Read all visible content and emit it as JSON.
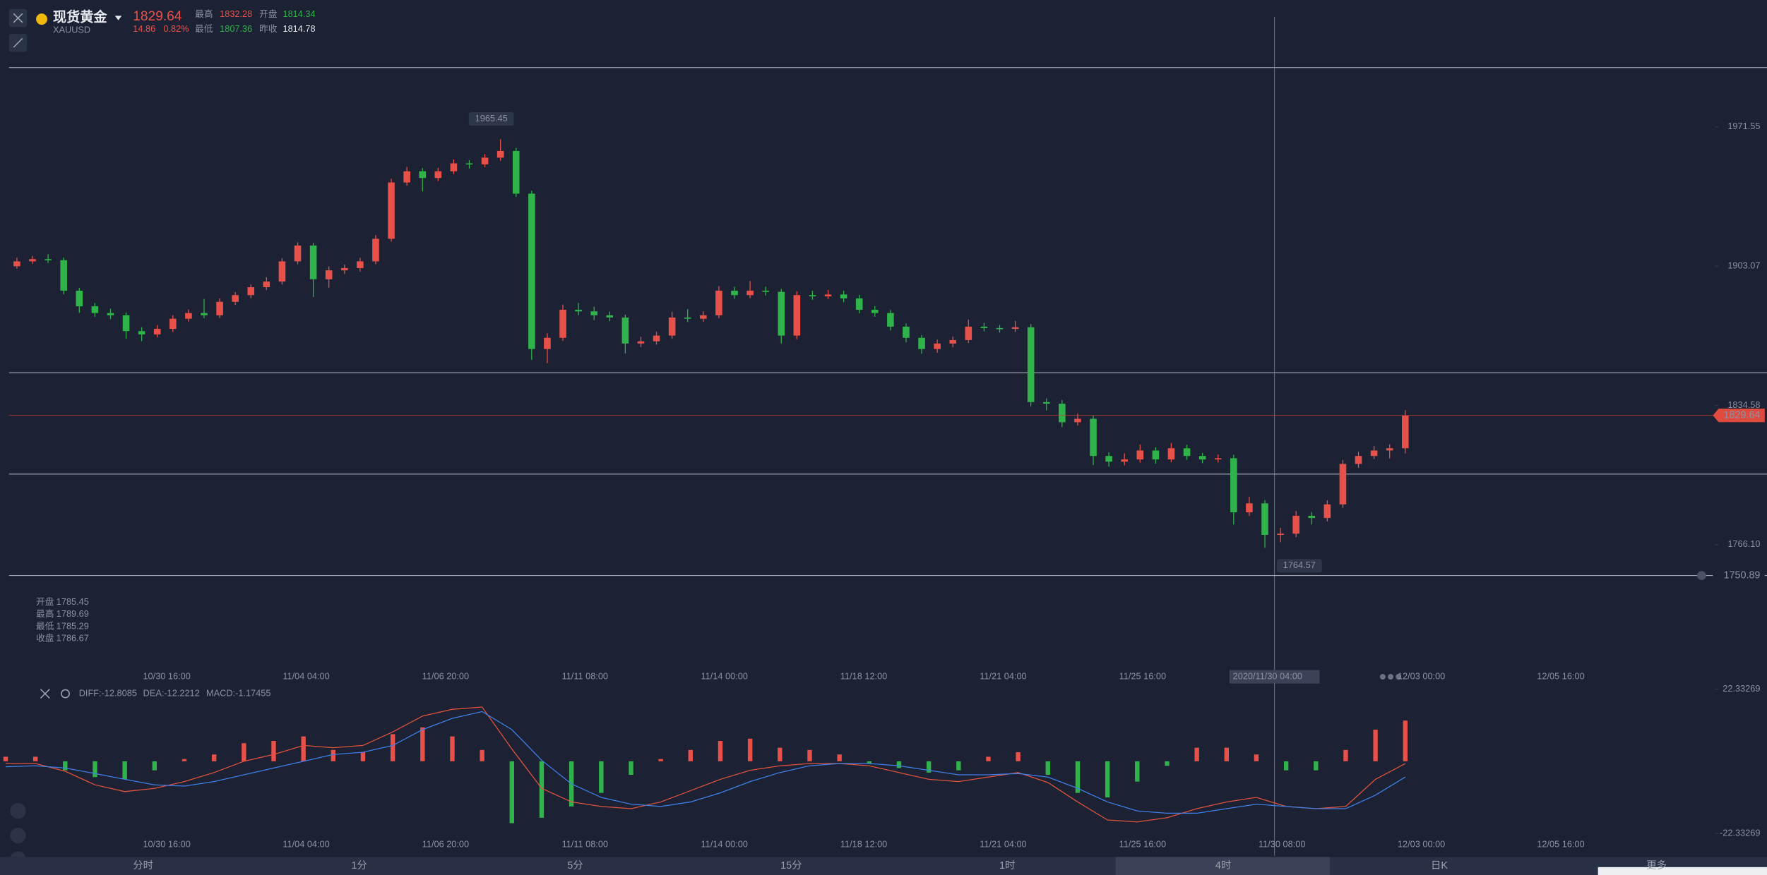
{
  "header": {
    "title": "现货黄金",
    "symbol": "XAUUSD",
    "price": "1829.64",
    "change": "14.86",
    "change_pct": "0.82%",
    "high_label": "最高",
    "high": "1832.28",
    "open_label": "开盘",
    "open": "1814.34",
    "low_label": "最低",
    "low": "1807.36",
    "prev_label": "昨收",
    "prev": "1814.78"
  },
  "ohlc_info": [
    {
      "label": "开盘",
      "value": "1785.45"
    },
    {
      "label": "最高",
      "value": "1789.69"
    },
    {
      "label": "最低",
      "value": "1785.29"
    },
    {
      "label": "收盘",
      "value": "1786.67"
    }
  ],
  "tabs": [
    "分时",
    "1分",
    "5分",
    "15分",
    "1时",
    "4时",
    "日K"
  ],
  "more": "更多",
  "chart_data": [
    {
      "type": "candlestick",
      "up_color": "#e8514a",
      "down_color": "#2fb34a",
      "ylim": [
        1707.2,
        2000.7
      ],
      "yticks": [
        1971.55,
        1903.07,
        1834.58,
        {
          "value": 1766.1,
          "label": "1766.10"
        }
      ],
      "high_marker": 1965.45,
      "low_marker": 1764.57,
      "last_price": 1829.64,
      "alert_price": 1750.89,
      "crosshair_label": "2020/11/30 04:00",
      "xtick_labels": [
        "10/30 16:00",
        "11/04 04:00",
        "11/06 20:00",
        "11/11 08:00",
        "11/14 00:00",
        "11/18 12:00",
        "11/21 04:00",
        "11/25 16:00",
        null,
        "12/03 00:00",
        "12/05 16:00"
      ],
      "candles": [
        [
          1903.0,
          1907.2,
          1901.8,
          1905.4
        ],
        [
          1905.4,
          1908.0,
          1904.1,
          1906.5
        ],
        [
          1906.5,
          1908.9,
          1904.6,
          1906.0
        ],
        [
          1906.0,
          1907.3,
          1889.2,
          1891.0
        ],
        [
          1891.0,
          1892.4,
          1880.1,
          1883.3
        ],
        [
          1883.3,
          1885.0,
          1878.2,
          1880.0
        ],
        [
          1880.0,
          1882.1,
          1877.0,
          1878.9
        ],
        [
          1878.9,
          1880.3,
          1867.4,
          1871.1
        ],
        [
          1871.1,
          1873.0,
          1866.2,
          1869.5
        ],
        [
          1869.5,
          1874.1,
          1868.0,
          1872.2
        ],
        [
          1872.2,
          1878.9,
          1870.6,
          1877.2
        ],
        [
          1877.2,
          1881.7,
          1875.8,
          1880.0
        ],
        [
          1880.0,
          1886.9,
          1877.4,
          1878.9
        ],
        [
          1878.9,
          1887.2,
          1877.5,
          1885.5
        ],
        [
          1885.5,
          1890.3,
          1884.0,
          1888.8
        ],
        [
          1888.8,
          1894.1,
          1887.2,
          1892.7
        ],
        [
          1892.7,
          1897.6,
          1891.3,
          1895.5
        ],
        [
          1895.5,
          1907.0,
          1894.0,
          1905.4
        ],
        [
          1905.4,
          1914.8,
          1903.9,
          1913.2
        ],
        [
          1913.2,
          1914.5,
          1887.9,
          1896.6
        ],
        [
          1896.6,
          1902.9,
          1892.5,
          1901.0
        ],
        [
          1901.0,
          1903.8,
          1899.2,
          1902.1
        ],
        [
          1902.1,
          1907.1,
          1900.4,
          1905.4
        ],
        [
          1905.4,
          1918.3,
          1904.0,
          1916.5
        ],
        [
          1916.5,
          1946.0,
          1915.1,
          1944.2
        ],
        [
          1944.2,
          1951.8,
          1942.6,
          1949.7
        ],
        [
          1949.7,
          1951.3,
          1939.8,
          1946.4
        ],
        [
          1946.4,
          1951.4,
          1944.9,
          1949.7
        ],
        [
          1949.7,
          1955.5,
          1948.3,
          1953.6
        ],
        [
          1953.6,
          1955.2,
          1951.0,
          1953.1
        ],
        [
          1953.1,
          1958.2,
          1951.7,
          1956.4
        ],
        [
          1956.4,
          1965.45,
          1954.9,
          1959.7
        ],
        [
          1959.7,
          1961.2,
          1937.1,
          1938.7
        ],
        [
          1938.7,
          1940.1,
          1857.0,
          1862.3
        ],
        [
          1862.3,
          1870.0,
          1855.4,
          1867.8
        ],
        [
          1867.8,
          1884.2,
          1866.3,
          1881.6
        ],
        [
          1881.6,
          1885.0,
          1878.9,
          1880.8
        ],
        [
          1880.8,
          1883.1,
          1876.5,
          1878.9
        ],
        [
          1878.9,
          1880.7,
          1875.9,
          1877.8
        ],
        [
          1877.8,
          1879.2,
          1860.1,
          1865.0
        ],
        [
          1865.0,
          1868.3,
          1863.2,
          1866.1
        ],
        [
          1866.1,
          1870.8,
          1864.4,
          1868.9
        ],
        [
          1868.9,
          1880.6,
          1867.3,
          1877.8
        ],
        [
          1877.8,
          1881.9,
          1875.6,
          1877.2
        ],
        [
          1877.2,
          1880.8,
          1875.7,
          1878.9
        ],
        [
          1878.9,
          1893.2,
          1877.4,
          1891.0
        ],
        [
          1891.0,
          1892.9,
          1887.0,
          1888.8
        ],
        [
          1888.8,
          1895.7,
          1887.3,
          1891.0
        ],
        [
          1891.0,
          1893.0,
          1888.6,
          1890.4
        ],
        [
          1890.4,
          1891.9,
          1865.0,
          1868.9
        ],
        [
          1868.9,
          1890.7,
          1867.1,
          1888.8
        ],
        [
          1888.8,
          1891.0,
          1886.5,
          1888.2
        ],
        [
          1888.2,
          1891.4,
          1886.9,
          1889.1
        ],
        [
          1889.1,
          1891.0,
          1885.3,
          1887.2
        ],
        [
          1887.2,
          1888.9,
          1879.8,
          1881.6
        ],
        [
          1881.6,
          1883.4,
          1878.2,
          1880.0
        ],
        [
          1880.0,
          1881.5,
          1871.4,
          1873.3
        ],
        [
          1873.3,
          1874.9,
          1865.6,
          1867.8
        ],
        [
          1867.8,
          1869.2,
          1860.0,
          1862.3
        ],
        [
          1862.3,
          1866.9,
          1860.5,
          1865.0
        ],
        [
          1865.0,
          1868.4,
          1863.1,
          1866.7
        ],
        [
          1866.7,
          1876.8,
          1865.2,
          1873.3
        ],
        [
          1873.3,
          1875.2,
          1870.9,
          1872.6
        ],
        [
          1872.6,
          1874.1,
          1870.4,
          1872.2
        ],
        [
          1872.2,
          1876.1,
          1870.7,
          1873.0
        ],
        [
          1873.0,
          1874.6,
          1834.0,
          1836.2
        ],
        [
          1836.2,
          1838.0,
          1832.1,
          1835.4
        ],
        [
          1835.4,
          1837.2,
          1823.9,
          1826.3
        ],
        [
          1826.3,
          1830.5,
          1824.6,
          1828.0
        ],
        [
          1828.0,
          1829.6,
          1805.2,
          1809.7
        ],
        [
          1809.7,
          1811.5,
          1804.4,
          1806.9
        ],
        [
          1806.9,
          1811.0,
          1805.1,
          1808.0
        ],
        [
          1808.0,
          1815.3,
          1806.4,
          1812.4
        ],
        [
          1812.4,
          1814.0,
          1805.9,
          1808.0
        ],
        [
          1808.0,
          1816.1,
          1806.6,
          1813.5
        ],
        [
          1813.5,
          1815.2,
          1807.8,
          1809.7
        ],
        [
          1809.7,
          1811.2,
          1806.1,
          1808.0
        ],
        [
          1808.0,
          1810.4,
          1806.5,
          1808.6
        ],
        [
          1808.6,
          1810.3,
          1776.0,
          1782.0
        ],
        [
          1782.0,
          1789.69,
          1780.2,
          1786.4
        ],
        [
          1786.4,
          1788.0,
          1764.57,
          1770.9
        ],
        [
          1770.9,
          1774.4,
          1767.3,
          1771.5
        ],
        [
          1771.5,
          1782.6,
          1769.8,
          1780.3
        ],
        [
          1780.3,
          1782.1,
          1776.0,
          1779.2
        ],
        [
          1779.2,
          1787.9,
          1777.5,
          1785.9
        ],
        [
          1785.9,
          1807.8,
          1784.2,
          1805.8
        ],
        [
          1805.8,
          1811.8,
          1803.9,
          1809.7
        ],
        [
          1809.7,
          1814.6,
          1808.2,
          1812.4
        ],
        [
          1812.4,
          1815.4,
          1808.5,
          1813.5
        ],
        [
          1813.5,
          1832.28,
          1811.0,
          1829.64
        ]
      ]
    },
    {
      "type": "macd",
      "ylim": [
        -22.33269,
        22.33269
      ],
      "yticks": [
        22.33269,
        -22.33269
      ],
      "legend": [
        "DIFF:-12.8085",
        "DEA:-12.2212",
        "MACD:-1.17455"
      ],
      "up_color": "#e8514a",
      "down_color": "#2fb34a",
      "xtick_labels": [
        "10/30 16:00",
        "11/04 04:00",
        "11/06 20:00",
        "11/11 08:00",
        "11/14 00:00",
        "11/18 12:00",
        "11/21 04:00",
        "11/25 16:00",
        "11/30 08:00",
        "12/03 00:00",
        "12/05 16:00"
      ],
      "histogram": [
        1.4,
        1.4,
        -2.8,
        -4.9,
        -5.6,
        -2.8,
        0.7,
        2.1,
        5.6,
        6.3,
        7.7,
        3.5,
        2.8,
        8.4,
        10.5,
        7.7,
        3.5,
        -19.2,
        -17.5,
        -14.0,
        -9.8,
        -4.2,
        0.7,
        3.5,
        6.3,
        7.0,
        4.2,
        3.5,
        2.1,
        -0.7,
        -2.1,
        -3.5,
        -2.8,
        1.4,
        2.8,
        -4.2,
        -9.8,
        -11.2,
        -6.3,
        -1.4,
        4.2,
        4.2,
        2.1,
        -2.8,
        -2.8,
        3.5,
        9.8,
        12.6
      ],
      "series": [
        {
          "color": "#e0523d",
          "values": [
            -0.7,
            -0.7,
            -3.1,
            -7.3,
            -9.4,
            -8.4,
            -6.3,
            -3.5,
            0,
            2.1,
            4.9,
            4.2,
            4.9,
            9.1,
            14.0,
            16.1,
            16.8,
            3.8,
            -8.4,
            -12.6,
            -14.0,
            -14.7,
            -12.6,
            -9.1,
            -5.6,
            -2.8,
            -1.4,
            -0.7,
            -0.7,
            -1.4,
            -3.5,
            -5.6,
            -6.3,
            -4.9,
            -3.5,
            -6.6,
            -12.6,
            -18.2,
            -18.8,
            -17.5,
            -14.7,
            -12.6,
            -11.2,
            -14.0,
            -14.7,
            -14.0,
            -5.6,
            -0.7
          ]
        },
        {
          "color": "#3f7fe8",
          "values": [
            -1.7,
            -1.4,
            -2.1,
            -3.8,
            -5.6,
            -7.3,
            -7.7,
            -6.3,
            -4.2,
            -2.1,
            0,
            2.1,
            2.8,
            4.9,
            9.8,
            13.3,
            15.4,
            9.8,
            0.3,
            -7.0,
            -11.2,
            -13.3,
            -14.0,
            -12.6,
            -9.8,
            -6.3,
            -3.5,
            -1.4,
            -0.7,
            -0.7,
            -1.4,
            -2.8,
            -4.2,
            -4.2,
            -3.8,
            -4.9,
            -8.4,
            -12.6,
            -15.4,
            -16.1,
            -16.1,
            -14.7,
            -13.3,
            -14.0,
            -14.7,
            -14.7,
            -10.5,
            -4.9
          ]
        }
      ]
    }
  ]
}
